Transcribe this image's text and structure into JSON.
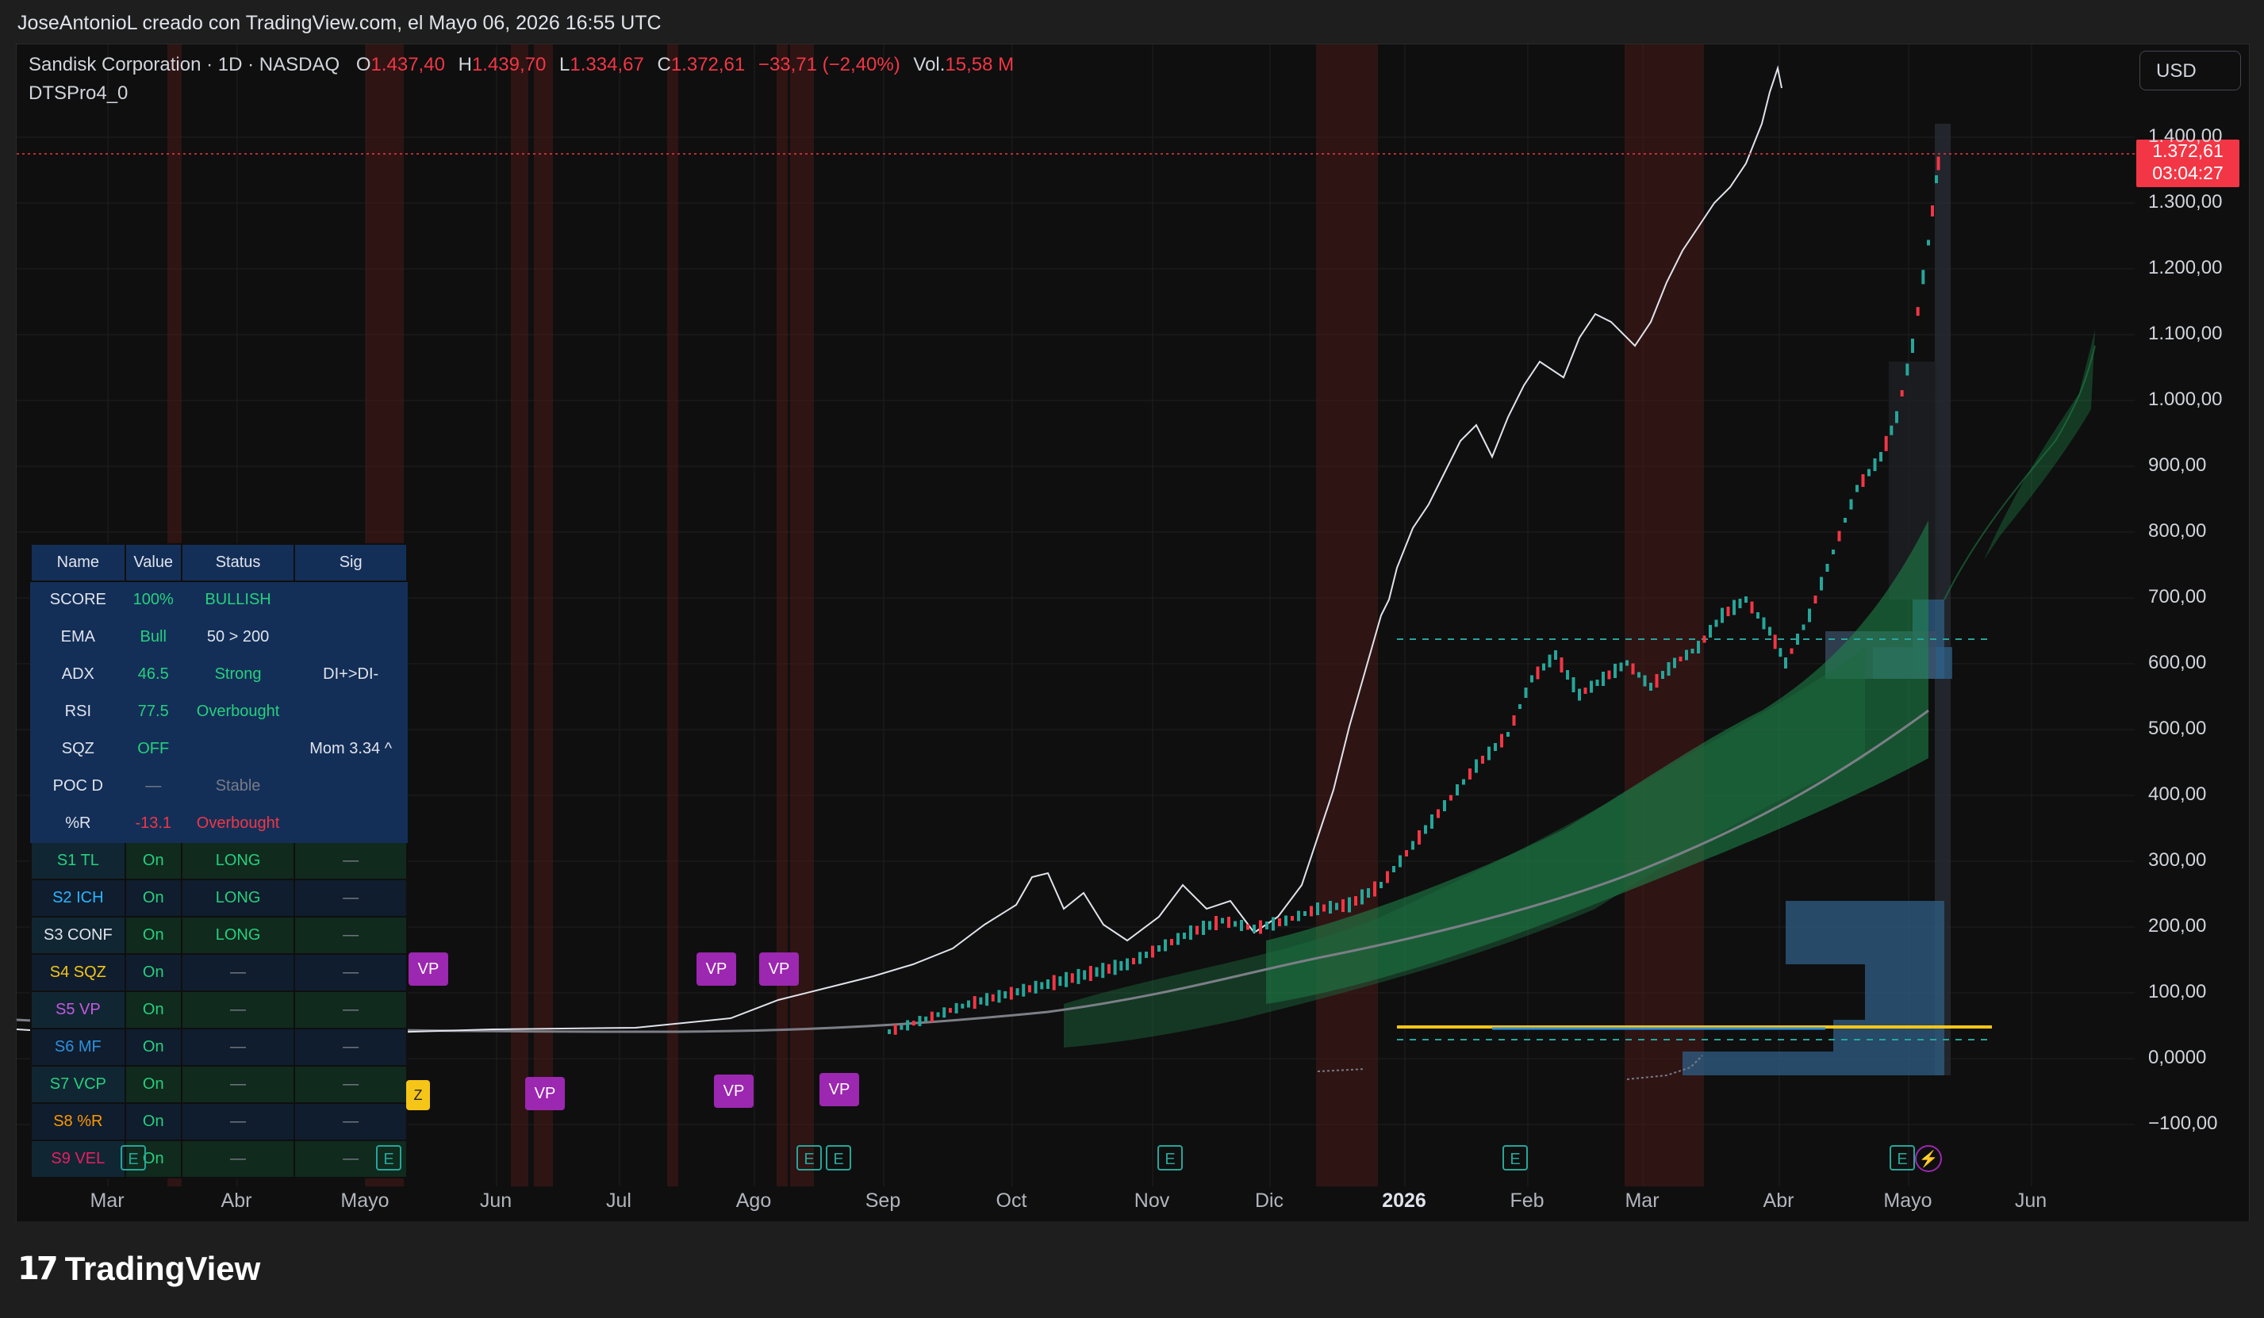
{
  "header": {
    "attribution": "JoseAntonioL creado con TradingView.com, el Mayo 06, 2026 16:55 UTC"
  },
  "legend": {
    "symbol": "Sandisk Corporation · 1D · NASDAQ",
    "o_label": "O",
    "o_value": "1.437,40",
    "h_label": "H",
    "h_value": "1.439,70",
    "l_label": "L",
    "l_value": "1.334,67",
    "c_label": "C",
    "c_value": "1.372,61",
    "change": "−33,71 (−2,40%)",
    "vol_label": "Vol.",
    "vol_value": "15,58 M",
    "indicator": "DTSPro4_0"
  },
  "currency": "USD",
  "last_price": {
    "price": "1.372,61",
    "countdown": "03:04:27"
  },
  "colors": {
    "up": "#26a69a",
    "down": "#f23645",
    "accent_red": "#f23645",
    "green_fill": "#1f8b4c",
    "blue_fill": "#2f5f86",
    "yellow_line": "#f5c518",
    "marker_purple": "#9c27b0"
  },
  "y_axis": {
    "labels": [
      "1.400,00",
      "1.300,00",
      "1.200,00",
      "1.100,00",
      "1.000,00",
      "900,00",
      "800,00",
      "700,00",
      "600,00",
      "500,00",
      "400,00",
      "300,00",
      "200,00",
      "100,00",
      "0,0000",
      "−100,00"
    ]
  },
  "x_axis": {
    "labels": [
      "Mar",
      "Abr",
      "Mayo",
      "Jun",
      "Jul",
      "Ago",
      "Sep",
      "Oct",
      "Nov",
      "Dic",
      "2026",
      "Feb",
      "Mar",
      "Abr",
      "Mayo",
      "Jun"
    ]
  },
  "panel": {
    "headers": [
      "Name",
      "Value",
      "Status",
      "Sig"
    ],
    "rows": [
      [
        "SCORE",
        "100%",
        "BULLISH",
        ""
      ],
      [
        "EMA",
        "Bull",
        "50 > 200",
        ""
      ],
      [
        "ADX",
        "46.5",
        "Strong",
        "DI+>DI-"
      ],
      [
        "RSI",
        "77.5",
        "Overbought",
        ""
      ],
      [
        "SQZ",
        "OFF",
        "",
        "Mom 3.34 ^"
      ],
      [
        "POC D",
        "—",
        "Stable",
        ""
      ],
      [
        "%R",
        "-13.1",
        "Overbought",
        ""
      ],
      [
        "S1 TL",
        "On",
        "LONG",
        "—"
      ],
      [
        "S2 ICH",
        "On",
        "LONG",
        "—"
      ],
      [
        "S3 CONF",
        "On",
        "LONG",
        "—"
      ],
      [
        "S4 SQZ",
        "On",
        "—",
        "—"
      ],
      [
        "S5 VP",
        "On",
        "—",
        "—"
      ],
      [
        "S6 MF",
        "On",
        "—",
        "—"
      ],
      [
        "S7 VCP",
        "On",
        "—",
        "—"
      ],
      [
        "S8 %R",
        "On",
        "—",
        "—"
      ],
      [
        "S9 VEL",
        "On",
        "—",
        "—"
      ]
    ]
  },
  "markers": {
    "vp": "VP",
    "earnings": "E",
    "z": "Z"
  },
  "brand": {
    "name": "TradingView",
    "logo": "17"
  }
}
